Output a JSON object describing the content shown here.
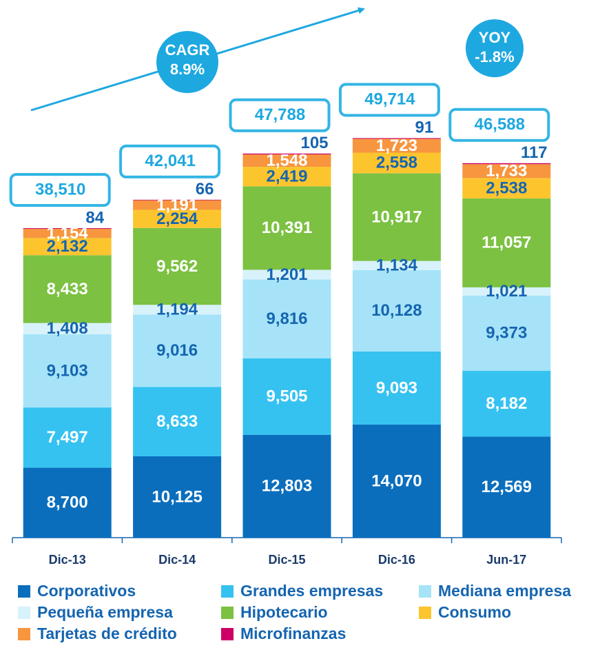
{
  "chart_data": {
    "type": "stacked_bar",
    "categories": [
      "Dic-13",
      "Dic-14",
      "Dic-15",
      "Dic-16",
      "Jun-17"
    ],
    "ylim": [
      0,
      50000
    ],
    "series": [
      {
        "name": "Corporativos",
        "color": "#0a6ebd",
        "label_color": "#ffffff",
        "values": [
          8700,
          10125,
          12803,
          14070,
          12569
        ],
        "value_labels": [
          "8,700",
          "10,125",
          "12,803",
          "14,070",
          "12,569"
        ]
      },
      {
        "name": "Grandes empresas",
        "color": "#35c2f1",
        "label_color": "#ffffff",
        "values": [
          7497,
          8633,
          9505,
          9093,
          8182
        ],
        "value_labels": [
          "7,497",
          "8,633",
          "9,505",
          "9,093",
          "8,182"
        ]
      },
      {
        "name": "Mediana empresa",
        "color": "#a6e3f8",
        "label_color": "#1565b0",
        "values": [
          9103,
          9016,
          9816,
          10128,
          9373
        ],
        "value_labels": [
          "9,103",
          "9,016",
          "9,816",
          "10,128",
          "9,373"
        ]
      },
      {
        "name": "Pequeña empresa",
        "color": "#d8f2fb",
        "label_color": "#1565b0",
        "values": [
          1408,
          1194,
          1201,
          1134,
          1021
        ],
        "value_labels": [
          "1,408",
          "1,194",
          "1,201",
          "1,134",
          "1,021"
        ]
      },
      {
        "name": "Hipotecario",
        "color": "#7cc142",
        "label_color": "#ffffff",
        "values": [
          8433,
          9562,
          10391,
          10917,
          11057
        ],
        "value_labels": [
          "8,433",
          "9,562",
          "10,391",
          "10,917",
          "11,057"
        ]
      },
      {
        "name": "Consumo",
        "color": "#fcc52e",
        "label_color": "#1565b0",
        "values": [
          2132,
          2254,
          2419,
          2558,
          2538
        ],
        "value_labels": [
          "2,132",
          "2,254",
          "2,419",
          "2,558",
          "2,538"
        ]
      },
      {
        "name": "Tarjetas de crédito",
        "color": "#f7963e",
        "label_color": "#ffffff",
        "values": [
          1154,
          1191,
          1548,
          1723,
          1733
        ],
        "value_labels": [
          "1,154",
          "1,191",
          "1,548",
          "1,723",
          "1,733"
        ]
      },
      {
        "name": "Microfinanzas",
        "color": "#cc0066",
        "label_color": "#1565b0",
        "values": [
          84,
          66,
          105,
          91,
          117
        ],
        "value_labels": [
          "84",
          "66",
          "105",
          "91",
          "117"
        ]
      }
    ],
    "totals": [
      38510,
      42041,
      47788,
      49714,
      46588
    ],
    "total_labels": [
      "38,510",
      "42,041",
      "47,788",
      "49,714",
      "46,588"
    ],
    "annotations": {
      "cagr_title": "CAGR",
      "cagr_value": "8.9%",
      "yoy_title": "YOY",
      "yoy_value": "-1.8%"
    }
  }
}
